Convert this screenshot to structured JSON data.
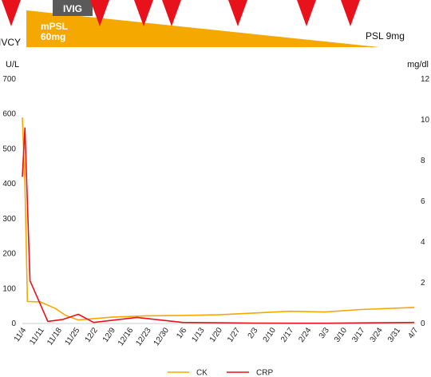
{
  "treatment": {
    "ivcy_label": "IVCY",
    "ivig_label": "IVIG",
    "mpsl_label_1": "mPSL",
    "mpsl_label_2": "60mg",
    "psl_label": "PSL 9mg",
    "arrow_color": "#e8121c",
    "steroid_color": "#f5a800",
    "ivig_color": "#5a5a5a",
    "arrow_dates": [
      "11/4",
      "12/5",
      "12/20",
      "12/28",
      "1/27",
      "2/24",
      "3/17"
    ]
  },
  "chart_data": {
    "type": "line",
    "title": "",
    "y_left_unit": "U/L",
    "y_right_unit": "mg/dl",
    "y_left_range": [
      0,
      700
    ],
    "y_left_ticks": [
      "0",
      "100",
      "200",
      "300",
      "400",
      "500",
      "600",
      "700"
    ],
    "y_right_range": [
      0,
      12
    ],
    "y_right_ticks": [
      "0",
      "2",
      "4",
      "6",
      "8",
      "10",
      "12"
    ],
    "x_ticks": [
      "11/4",
      "11/11",
      "11/18",
      "11/25",
      "12/2",
      "12/9",
      "12/16",
      "12/23",
      "12/30",
      "1/6",
      "1/13",
      "1/20",
      "1/27",
      "2/3",
      "2/10",
      "2/17",
      "2/24",
      "3/3",
      "3/10",
      "3/17",
      "3/24",
      "3/31",
      "4/7"
    ],
    "grid": false,
    "legend_position": "bottom",
    "series": [
      {
        "name": "CK",
        "axis": "left",
        "color": "#f5a800",
        "points": [
          [
            0,
            590
          ],
          [
            1,
            400
          ],
          [
            2,
            63
          ],
          [
            7,
            62
          ],
          [
            13,
            43
          ],
          [
            17,
            23
          ],
          [
            22,
            10
          ],
          [
            35,
            18
          ],
          [
            49,
            22
          ],
          [
            63,
            23
          ],
          [
            77,
            25
          ],
          [
            91,
            30
          ],
          [
            105,
            35
          ],
          [
            119,
            33
          ],
          [
            133,
            40
          ],
          [
            154,
            46
          ]
        ]
      },
      {
        "name": "CRP",
        "axis": "right",
        "color": "#e8121c",
        "points": [
          [
            0,
            7.2
          ],
          [
            1,
            9.6
          ],
          [
            3,
            2.1
          ],
          [
            10,
            0.1
          ],
          [
            16,
            0.2
          ],
          [
            22,
            0.45
          ],
          [
            28,
            0.05
          ],
          [
            45,
            0.3
          ],
          [
            63,
            0.05
          ],
          [
            91,
            0.02
          ],
          [
            119,
            0.01
          ],
          [
            154,
            0.05
          ]
        ]
      }
    ]
  }
}
